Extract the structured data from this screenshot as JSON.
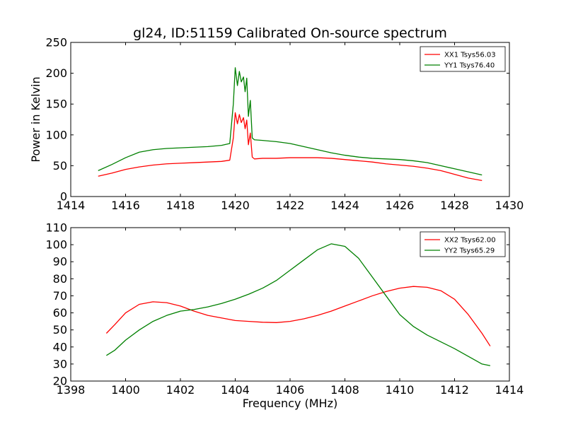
{
  "chart_data": [
    {
      "type": "line",
      "title": "gl24, ID:51159 Calibrated On-source spectrum",
      "xlabel": "",
      "ylabel": "Power in Kelvin",
      "xlim": [
        1414,
        1430
      ],
      "ylim": [
        0,
        250
      ],
      "xticks": [
        "1414",
        "1416",
        "1418",
        "1420",
        "1422",
        "1424",
        "1426",
        "1428",
        "1430"
      ],
      "yticks": [
        "0",
        "50",
        "100",
        "150",
        "200",
        "250"
      ],
      "grid": false,
      "legend": "top-right",
      "series": [
        {
          "name": "XX1 Tsys56.03",
          "color": "#ff0000",
          "points": [
            [
              1415.0,
              33
            ],
            [
              1415.5,
              38
            ],
            [
              1416.0,
              44
            ],
            [
              1416.5,
              48
            ],
            [
              1417.0,
              51
            ],
            [
              1417.5,
              53
            ],
            [
              1418.0,
              54
            ],
            [
              1418.5,
              55
            ],
            [
              1419.0,
              56
            ],
            [
              1419.5,
              57
            ],
            [
              1419.8,
              59
            ],
            [
              1419.93,
              95
            ],
            [
              1420.0,
              136
            ],
            [
              1420.08,
              118
            ],
            [
              1420.15,
              133
            ],
            [
              1420.22,
              120
            ],
            [
              1420.3,
              128
            ],
            [
              1420.36,
              110
            ],
            [
              1420.42,
              124
            ],
            [
              1420.48,
              84
            ],
            [
              1420.55,
              103
            ],
            [
              1420.62,
              64
            ],
            [
              1420.7,
              61
            ],
            [
              1421.0,
              62
            ],
            [
              1421.5,
              62
            ],
            [
              1422.0,
              63
            ],
            [
              1422.5,
              63
            ],
            [
              1423.0,
              63
            ],
            [
              1423.5,
              62
            ],
            [
              1424.0,
              60
            ],
            [
              1424.5,
              58
            ],
            [
              1425.0,
              56
            ],
            [
              1425.5,
              53
            ],
            [
              1426.0,
              51
            ],
            [
              1426.5,
              49
            ],
            [
              1427.0,
              46
            ],
            [
              1427.5,
              42
            ],
            [
              1428.0,
              36
            ],
            [
              1428.5,
              30
            ],
            [
              1429.0,
              26
            ]
          ]
        },
        {
          "name": "YY1 Tsys76.40",
          "color": "#008000",
          "points": [
            [
              1415.0,
              42
            ],
            [
              1415.5,
              52
            ],
            [
              1416.0,
              63
            ],
            [
              1416.5,
              72
            ],
            [
              1417.0,
              76
            ],
            [
              1417.5,
              78
            ],
            [
              1418.0,
              79
            ],
            [
              1418.5,
              80
            ],
            [
              1419.0,
              81
            ],
            [
              1419.5,
              83
            ],
            [
              1419.8,
              86
            ],
            [
              1419.93,
              150
            ],
            [
              1420.0,
              209
            ],
            [
              1420.08,
              180
            ],
            [
              1420.15,
              203
            ],
            [
              1420.22,
              186
            ],
            [
              1420.3,
              194
            ],
            [
              1420.36,
              170
            ],
            [
              1420.42,
              192
            ],
            [
              1420.48,
              130
            ],
            [
              1420.55,
              156
            ],
            [
              1420.62,
              95
            ],
            [
              1420.7,
              92
            ],
            [
              1421.0,
              91
            ],
            [
              1421.5,
              89
            ],
            [
              1422.0,
              86
            ],
            [
              1422.5,
              81
            ],
            [
              1423.0,
              76
            ],
            [
              1423.5,
              71
            ],
            [
              1424.0,
              67
            ],
            [
              1424.5,
              64
            ],
            [
              1425.0,
              62
            ],
            [
              1425.5,
              61
            ],
            [
              1426.0,
              60
            ],
            [
              1426.5,
              58
            ],
            [
              1427.0,
              55
            ],
            [
              1427.5,
              50
            ],
            [
              1428.0,
              45
            ],
            [
              1428.5,
              40
            ],
            [
              1429.0,
              35
            ]
          ]
        }
      ]
    },
    {
      "type": "line",
      "title": "",
      "xlabel": "Frequency (MHz)",
      "ylabel": "",
      "xlim": [
        1398,
        1414
      ],
      "ylim": [
        20,
        110
      ],
      "xticks": [
        "1398",
        "1400",
        "1402",
        "1404",
        "1406",
        "1408",
        "1410",
        "1412",
        "1414"
      ],
      "yticks": [
        "20",
        "30",
        "40",
        "50",
        "60",
        "70",
        "80",
        "90",
        "100",
        "110"
      ],
      "grid": false,
      "legend": "top-right",
      "series": [
        {
          "name": "XX2 Tsys62.00",
          "color": "#ff0000",
          "points": [
            [
              1399.3,
              48
            ],
            [
              1399.6,
              53
            ],
            [
              1400.0,
              60
            ],
            [
              1400.5,
              65
            ],
            [
              1401.0,
              66.5
            ],
            [
              1401.5,
              66
            ],
            [
              1402.0,
              64
            ],
            [
              1402.5,
              61
            ],
            [
              1403.0,
              58.5
            ],
            [
              1403.5,
              57
            ],
            [
              1404.0,
              55.5
            ],
            [
              1404.5,
              55
            ],
            [
              1405.0,
              54.5
            ],
            [
              1405.5,
              54.3
            ],
            [
              1406.0,
              55
            ],
            [
              1406.5,
              56.5
            ],
            [
              1407.0,
              58.5
            ],
            [
              1407.5,
              61
            ],
            [
              1408.0,
              64
            ],
            [
              1408.5,
              67
            ],
            [
              1409.0,
              70
            ],
            [
              1409.5,
              72.5
            ],
            [
              1410.0,
              74.5
            ],
            [
              1410.5,
              75.5
            ],
            [
              1411.0,
              75
            ],
            [
              1411.5,
              73
            ],
            [
              1412.0,
              68
            ],
            [
              1412.5,
              59
            ],
            [
              1413.0,
              48
            ],
            [
              1413.3,
              40.5
            ]
          ]
        },
        {
          "name": "YY2 Tsys65.29",
          "color": "#008000",
          "points": [
            [
              1399.3,
              35
            ],
            [
              1399.6,
              38
            ],
            [
              1400.0,
              44
            ],
            [
              1400.5,
              50
            ],
            [
              1401.0,
              55
            ],
            [
              1401.5,
              58.5
            ],
            [
              1402.0,
              61
            ],
            [
              1402.5,
              62
            ],
            [
              1403.0,
              63.5
            ],
            [
              1403.5,
              65.5
            ],
            [
              1404.0,
              68
            ],
            [
              1404.5,
              71
            ],
            [
              1405.0,
              74.5
            ],
            [
              1405.5,
              79
            ],
            [
              1406.0,
              85
            ],
            [
              1406.5,
              91
            ],
            [
              1407.0,
              97
            ],
            [
              1407.5,
              100.5
            ],
            [
              1408.0,
              99
            ],
            [
              1408.5,
              92
            ],
            [
              1409.0,
              81
            ],
            [
              1409.5,
              70
            ],
            [
              1410.0,
              59
            ],
            [
              1410.5,
              52
            ],
            [
              1411.0,
              47
            ],
            [
              1411.5,
              43
            ],
            [
              1412.0,
              39
            ],
            [
              1412.5,
              34.5
            ],
            [
              1413.0,
              30
            ],
            [
              1413.3,
              29
            ]
          ]
        }
      ]
    }
  ]
}
